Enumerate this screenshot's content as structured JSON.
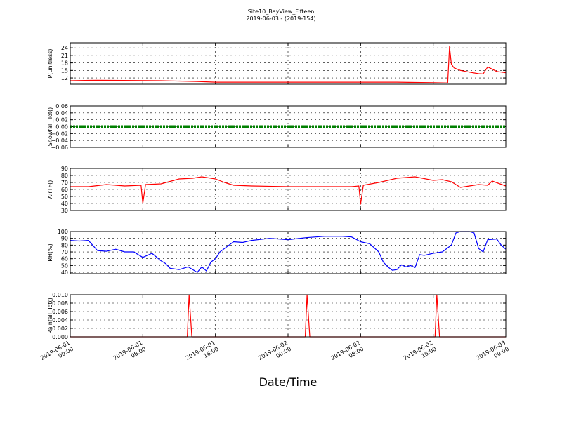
{
  "title": "Site10_BayView_Fifteen",
  "subtitle": "2019-06-03 - (2019-154)",
  "x_axis_label": "Date/Time",
  "x_ticks": [
    {
      "value": 0,
      "line1": "2019-06-01",
      "line2": "00:00"
    },
    {
      "value": 8,
      "line1": "2019-06-01",
      "line2": "08:00"
    },
    {
      "value": 16,
      "line1": "2019-06-01",
      "line2": "16:00"
    },
    {
      "value": 24,
      "line1": "2019-06-02",
      "line2": "00:00"
    },
    {
      "value": 32,
      "line1": "2019-06-02",
      "line2": "08:00"
    },
    {
      "value": 40,
      "line1": "2019-06-02",
      "line2": "16:00"
    },
    {
      "value": 48,
      "line1": "2019-06-03",
      "line2": "00:00"
    }
  ],
  "colors": {
    "red": "#ff0000",
    "green": "#008000",
    "blue": "#0000ff"
  },
  "chart_data": [
    {
      "type": "line",
      "ylabel": "P(unitless)",
      "ylim": [
        9.5,
        26
      ],
      "yticks": [
        12,
        15,
        18,
        21,
        24
      ],
      "tick_labels": [
        "12",
        "15",
        "18",
        "21",
        "24"
      ],
      "grid": true,
      "series": [
        {
          "color": "#ff0000",
          "x": [
            0,
            3,
            10,
            14,
            16,
            26,
            36,
            40,
            41.6,
            41.8,
            42.0,
            42.3,
            43,
            44,
            45,
            45.5,
            46,
            47,
            48
          ],
          "y": [
            10.9,
            11.1,
            10.9,
            10.6,
            10.3,
            10.3,
            10.3,
            10.1,
            10.0,
            24.5,
            17.5,
            16.0,
            15.0,
            14.3,
            13.7,
            13.6,
            16.4,
            14.6,
            14.1
          ]
        }
      ]
    },
    {
      "type": "line",
      "ylabel": "Snowfall_Tot()",
      "ylim": [
        -0.06,
        0.06
      ],
      "yticks": [
        -0.06,
        -0.04,
        -0.02,
        0.0,
        0.02,
        0.04,
        0.06
      ],
      "tick_labels": [
        "−0.06",
        "−0.04",
        "−0.02",
        "0.00",
        "0.02",
        "0.04",
        "0.06"
      ],
      "grid": true,
      "series": [
        {
          "color": "#008000",
          "marker": "dot",
          "x": [
            0,
            48
          ],
          "y": [
            0,
            0
          ]
        }
      ]
    },
    {
      "type": "line",
      "ylabel": "AirTF()",
      "ylim": [
        30,
        90
      ],
      "yticks": [
        30,
        40,
        50,
        60,
        70,
        80,
        90
      ],
      "tick_labels": [
        "30",
        "40",
        "50",
        "60",
        "70",
        "80",
        "90"
      ],
      "grid": true,
      "series": [
        {
          "color": "#ff0000",
          "x": [
            0,
            2,
            4,
            6,
            7.8,
            8.0,
            8.3,
            10,
            12,
            13.5,
            14.5,
            15,
            16,
            17,
            18,
            20,
            24,
            28,
            31,
            31.8,
            32.0,
            32.3,
            34,
            36,
            37,
            38,
            40,
            41,
            42,
            43,
            44,
            45,
            46,
            46.5,
            48
          ],
          "y": [
            64,
            64,
            67,
            65,
            66,
            40,
            67,
            68,
            75,
            76,
            78,
            77,
            75,
            70,
            66,
            65,
            64,
            64,
            64,
            65,
            39,
            66,
            70,
            76,
            77,
            78,
            73,
            74,
            71,
            63,
            65,
            67,
            66,
            72,
            65
          ]
        }
      ]
    },
    {
      "type": "line",
      "ylabel": "RH(%)",
      "ylim": [
        38,
        100
      ],
      "yticks": [
        40,
        50,
        60,
        70,
        80,
        90,
        100
      ],
      "tick_labels": [
        "40",
        "50",
        "60",
        "70",
        "80",
        "90",
        "100"
      ],
      "grid": true,
      "series": [
        {
          "color": "#0000ff",
          "x": [
            0,
            1,
            2,
            3,
            4,
            5,
            6,
            7,
            8,
            9,
            10,
            10.5,
            11,
            12,
            13,
            14,
            14.5,
            15,
            15.5,
            16,
            16.5,
            17,
            18,
            19,
            20,
            22,
            24,
            26,
            28,
            30,
            31,
            32,
            33,
            34,
            34.5,
            35,
            35.5,
            36,
            36.5,
            37,
            37.5,
            38,
            38.5,
            39,
            40,
            41,
            42,
            42.5,
            43,
            44,
            44.5,
            45,
            45.5,
            46,
            47,
            47.5,
            48
          ],
          "y": [
            87,
            86,
            87,
            72,
            71,
            74,
            70,
            70,
            62,
            68,
            57,
            53,
            46,
            44,
            48,
            40,
            48,
            42,
            55,
            60,
            70,
            75,
            85,
            84,
            87,
            90,
            88,
            91,
            93,
            93,
            92,
            85,
            82,
            70,
            55,
            48,
            43,
            44,
            51,
            48,
            50,
            47,
            66,
            65,
            68,
            70,
            80,
            98,
            100,
            100,
            98,
            75,
            70,
            88,
            89,
            80,
            74
          ]
        }
      ]
    },
    {
      "type": "line",
      "ylabel": "Rainfall_Tot()",
      "ylim": [
        0,
        0.01
      ],
      "yticks": [
        0,
        0.002,
        0.004,
        0.006,
        0.008,
        0.01
      ],
      "tick_labels": [
        "0.000",
        "0.002",
        "0.004",
        "0.006",
        "0.008",
        "0.010"
      ],
      "grid": true,
      "series": [
        {
          "color": "#ff0000",
          "x": [
            0,
            12.9,
            13.1,
            13.4,
            25.9,
            26.1,
            26.4,
            40.2,
            40.4,
            40.7,
            48
          ],
          "y": [
            0,
            0,
            0.01,
            0,
            0,
            0.01,
            0,
            0,
            0.01,
            0,
            0
          ]
        }
      ]
    }
  ]
}
